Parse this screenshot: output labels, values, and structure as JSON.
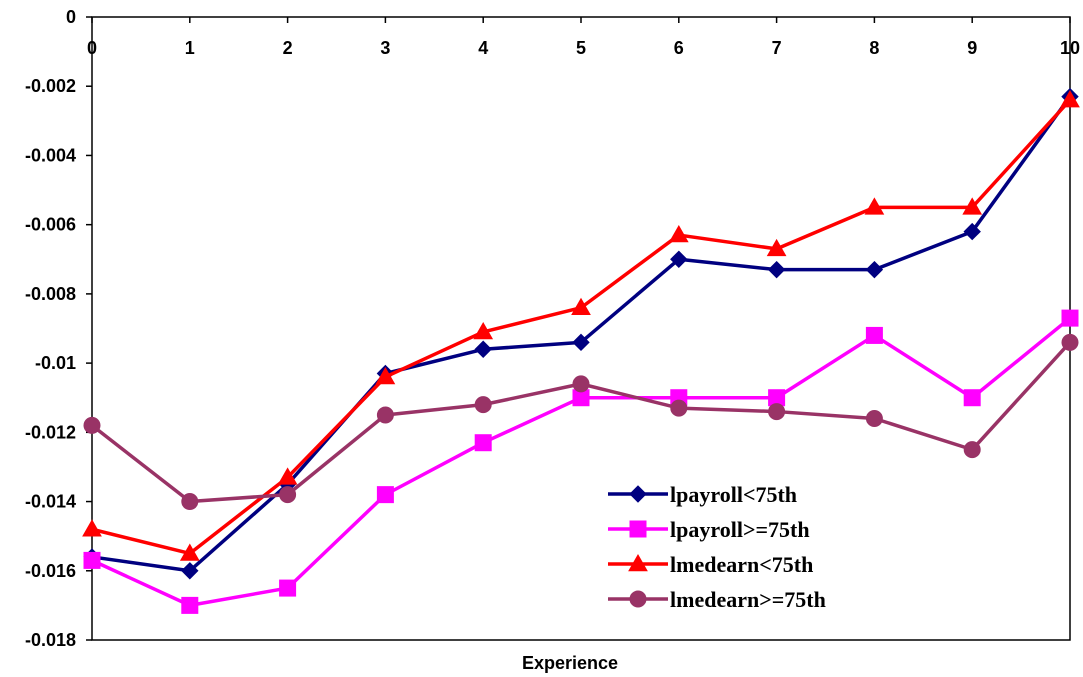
{
  "chart_data": {
    "type": "line",
    "title": "",
    "xlabel": "Experience",
    "ylabel": "",
    "x": [
      0,
      1,
      2,
      3,
      4,
      5,
      6,
      7,
      8,
      9,
      10
    ],
    "x_tick_labels": [
      "0",
      "1",
      "2",
      "3",
      "4",
      "5",
      "6",
      "7",
      "8",
      "9",
      "10"
    ],
    "ylim": [
      -0.018,
      0
    ],
    "y_ticks": [
      0,
      -0.002,
      -0.004,
      -0.006,
      -0.008,
      -0.01,
      -0.012,
      -0.014,
      -0.016,
      -0.018
    ],
    "y_tick_labels": [
      "0",
      "-0.002",
      "-0.004",
      "-0.006",
      "-0.008",
      "-0.01",
      "-0.012",
      "-0.014",
      "-0.016",
      "-0.018"
    ],
    "grid": false,
    "x_axis_position": "top",
    "legend_position": "bottom-right",
    "series": [
      {
        "name": "lpayroll<75th",
        "color": "#000080",
        "marker": "diamond",
        "values": [
          -0.0156,
          -0.016,
          -0.0135,
          -0.0103,
          -0.0096,
          -0.0094,
          -0.007,
          -0.0073,
          -0.0073,
          -0.0062,
          -0.0023
        ]
      },
      {
        "name": "lpayroll>=75th",
        "color": "#FF00FF",
        "marker": "square",
        "values": [
          -0.0157,
          -0.017,
          -0.0165,
          -0.0138,
          -0.0123,
          -0.011,
          -0.011,
          -0.011,
          -0.0092,
          -0.011,
          -0.0087
        ]
      },
      {
        "name": "lmedearn<75th",
        "color": "#FF0000",
        "marker": "triangle",
        "values": [
          -0.0148,
          -0.0155,
          -0.0133,
          -0.0104,
          -0.0091,
          -0.0084,
          -0.0063,
          -0.0067,
          -0.0055,
          -0.0055,
          -0.0024
        ]
      },
      {
        "name": "lmedearn>=75th",
        "color": "#993366",
        "marker": "circle",
        "values": [
          -0.0118,
          -0.014,
          -0.0138,
          -0.0115,
          -0.0112,
          -0.0106,
          -0.0113,
          -0.0114,
          -0.0116,
          -0.0125,
          -0.0094
        ]
      }
    ]
  }
}
